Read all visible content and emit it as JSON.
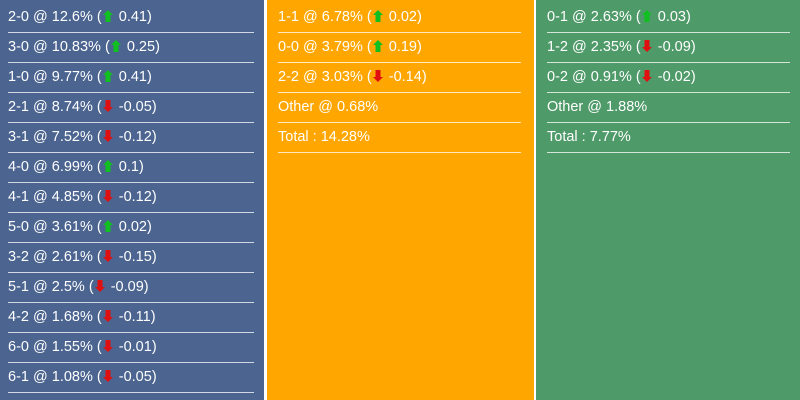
{
  "colors": {
    "home": "#4b6490",
    "draw": "#ffa600",
    "away": "#4f9a69",
    "up": "#10c020",
    "down": "#e01010"
  },
  "columns": [
    {
      "rows": [
        {
          "score": "2-0",
          "pct": "12.6%",
          "dir": "up",
          "change": "0.41"
        },
        {
          "score": "3-0",
          "pct": "10.83%",
          "dir": "up",
          "change": "0.25"
        },
        {
          "score": "1-0",
          "pct": "9.77%",
          "dir": "up",
          "change": "0.41"
        },
        {
          "score": "2-1",
          "pct": "8.74%",
          "dir": "down",
          "change": "-0.05"
        },
        {
          "score": "3-1",
          "pct": "7.52%",
          "dir": "down",
          "change": "-0.12"
        },
        {
          "score": "4-0",
          "pct": "6.99%",
          "dir": "up",
          "change": "0.1"
        },
        {
          "score": "4-1",
          "pct": "4.85%",
          "dir": "down",
          "change": "-0.12"
        },
        {
          "score": "5-0",
          "pct": "3.61%",
          "dir": "up",
          "change": "0.02"
        },
        {
          "score": "3-2",
          "pct": "2.61%",
          "dir": "down",
          "change": "-0.15"
        },
        {
          "score": "5-1",
          "pct": "2.5%",
          "dir": "down",
          "change": "-0.09"
        },
        {
          "score": "4-2",
          "pct": "1.68%",
          "dir": "down",
          "change": "-0.11"
        },
        {
          "score": "6-0",
          "pct": "1.55%",
          "dir": "down",
          "change": "-0.01"
        },
        {
          "score": "6-1",
          "pct": "1.08%",
          "dir": "down",
          "change": "-0.05"
        }
      ]
    },
    {
      "rows": [
        {
          "score": "1-1",
          "pct": "6.78%",
          "dir": "up",
          "change": "0.02"
        },
        {
          "score": "0-0",
          "pct": "3.79%",
          "dir": "up",
          "change": "0.19"
        },
        {
          "score": "2-2",
          "pct": "3.03%",
          "dir": "down",
          "change": "-0.14"
        },
        {
          "text": "Other @ 0.68%"
        },
        {
          "text": "Total : 14.28%"
        }
      ]
    },
    {
      "rows": [
        {
          "score": "0-1",
          "pct": "2.63%",
          "dir": "up",
          "change": "0.03"
        },
        {
          "score": "1-2",
          "pct": "2.35%",
          "dir": "down",
          "change": "-0.09"
        },
        {
          "score": "0-2",
          "pct": "0.91%",
          "dir": "down",
          "change": "-0.02"
        },
        {
          "text": "Other @ 1.88%"
        },
        {
          "text": "Total : 7.77%"
        }
      ]
    }
  ]
}
